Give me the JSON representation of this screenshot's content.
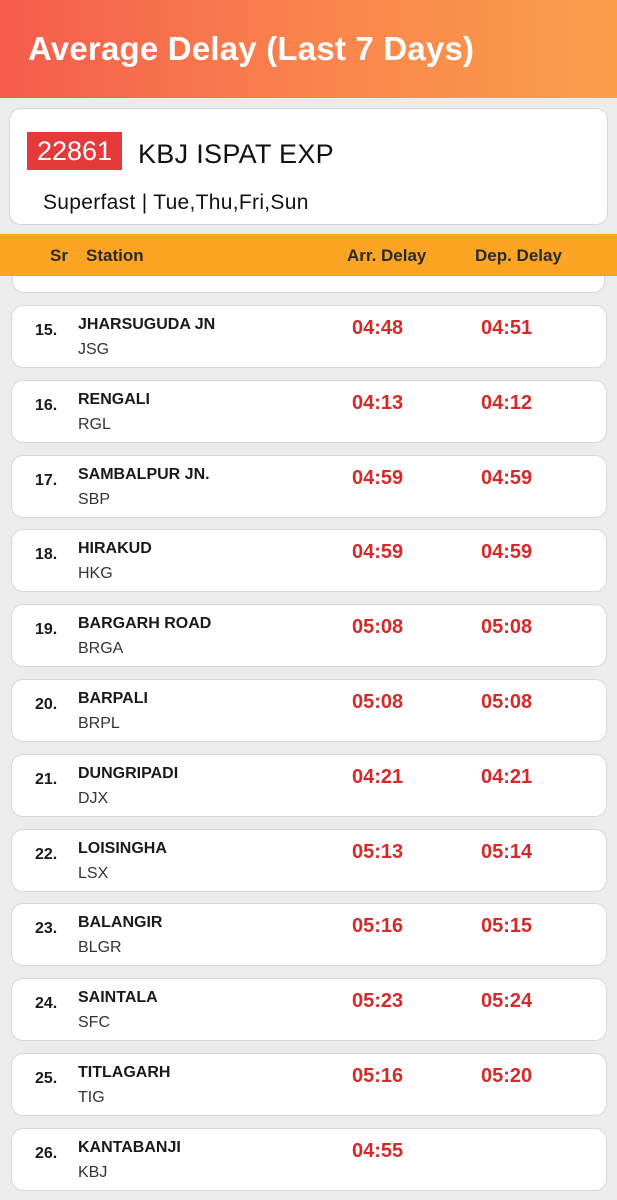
{
  "header": {
    "title": "Average Delay (Last 7 Days)"
  },
  "train": {
    "number": "22861",
    "name": "KBJ ISPAT EXP",
    "meta": "Superfast | Tue,Thu,Fri,Sun"
  },
  "table": {
    "col_sr": "Sr",
    "col_station": "Station",
    "col_arr": "Arr. Delay",
    "col_dep": "Dep. Delay",
    "rows": [
      {
        "sr": "15.",
        "name": "JHARSUGUDA JN",
        "code": "JSG",
        "arr": "04:48",
        "dep": "04:51"
      },
      {
        "sr": "16.",
        "name": "RENGALI",
        "code": "RGL",
        "arr": "04:13",
        "dep": "04:12"
      },
      {
        "sr": "17.",
        "name": "SAMBALPUR JN.",
        "code": "SBP",
        "arr": "04:59",
        "dep": "04:59"
      },
      {
        "sr": "18.",
        "name": "HIRAKUD",
        "code": "HKG",
        "arr": "04:59",
        "dep": "04:59"
      },
      {
        "sr": "19.",
        "name": "BARGARH ROAD",
        "code": "BRGA",
        "arr": "05:08",
        "dep": "05:08"
      },
      {
        "sr": "20.",
        "name": "BARPALI",
        "code": "BRPL",
        "arr": "05:08",
        "dep": "05:08"
      },
      {
        "sr": "21.",
        "name": "DUNGRIPADI",
        "code": "DJX",
        "arr": "04:21",
        "dep": "04:21"
      },
      {
        "sr": "22.",
        "name": "LOISINGHA",
        "code": "LSX",
        "arr": "05:13",
        "dep": "05:14"
      },
      {
        "sr": "23.",
        "name": "BALANGIR",
        "code": "BLGR",
        "arr": "05:16",
        "dep": "05:15"
      },
      {
        "sr": "24.",
        "name": "SAINTALA",
        "code": "SFC",
        "arr": "05:23",
        "dep": "05:24"
      },
      {
        "sr": "25.",
        "name": "TITLAGARH",
        "code": "TIG",
        "arr": "05:16",
        "dep": "05:20"
      },
      {
        "sr": "26.",
        "name": "KANTABANJI",
        "code": "KBJ",
        "arr": "04:55",
        "dep": ""
      }
    ]
  },
  "colors": {
    "header_gradient_start": "#f55c4d",
    "header_gradient_end": "#fb9e4a",
    "train_number_bg": "#e53a3a",
    "table_header_bg": "#fca524",
    "delay_text": "#d42a2a"
  }
}
